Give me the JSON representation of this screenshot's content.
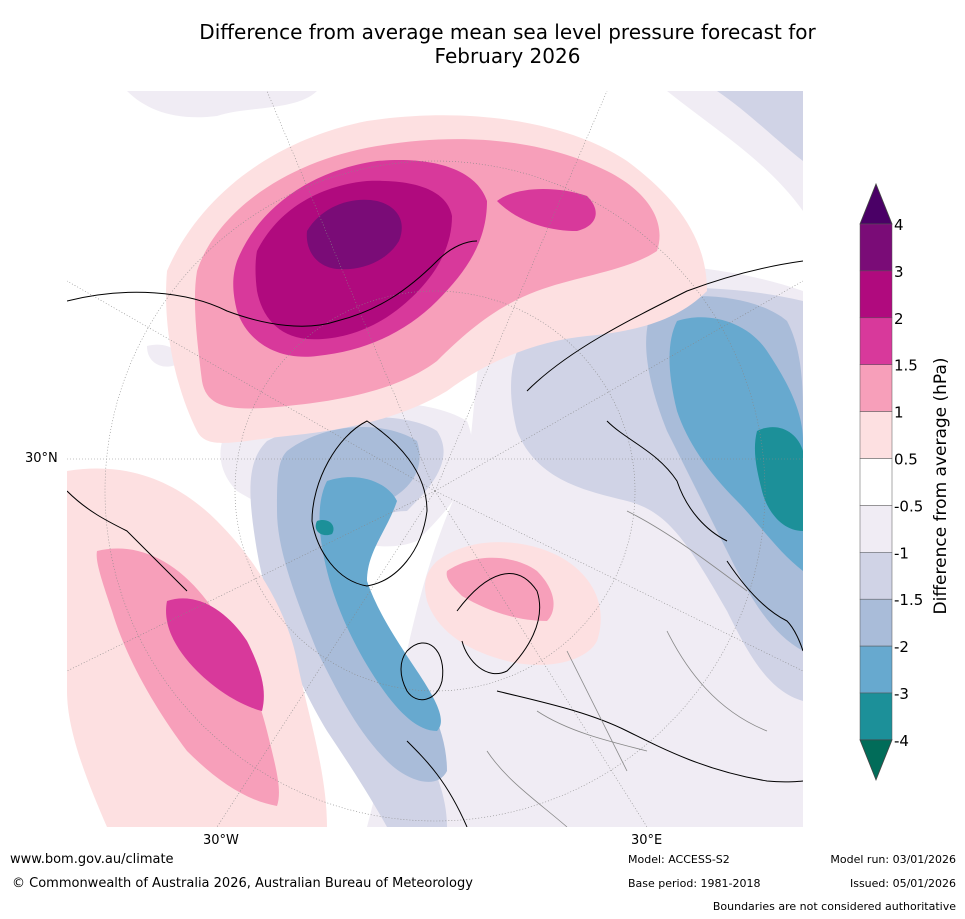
{
  "title_line1": "Difference from average mean sea level pressure forecast for",
  "title_line2": "February 2026",
  "map": {
    "projection": "north-polar stereographic",
    "lat_label": "30°N",
    "lon_labels": {
      "west": "30°W",
      "east": "30°E"
    }
  },
  "colorbar": {
    "label": "Difference from average (hPa)",
    "ticks": [
      "4",
      "3",
      "2",
      "1.5",
      "1",
      "0.5",
      "-0.5",
      "-1",
      "-1.5",
      "-2",
      "-3",
      "-4"
    ],
    "colors": {
      "above_4": "#4a0066",
      "3_to_4": "#7a0c77",
      "2_to_3": "#b00a7e",
      "1.5_to_2": "#d8399b",
      "1_to_1.5": "#f79fba",
      "0.5_to_1": "#fde0e1",
      "neutral": "#ffffff",
      "-1_to_-0.5": "#f0ecf4",
      "-1.5_to_-1": "#d0d3e6",
      "-2_to_-1.5": "#a9bcd9",
      "-3_to_-2": "#67a9cf",
      "-4_to_-3": "#1c9099",
      "below_-4": "#016c59"
    }
  },
  "footer": {
    "website": "www.bom.gov.au/climate",
    "copyright": "© Commonwealth of Australia 2026, Australian Bureau of Meteorology",
    "model": "Model: ACCESS-S2",
    "base_period": "Base period: 1981-2018",
    "model_run": "Model run: 03/01/2026",
    "issued": "Issued: 05/01/2026",
    "disclaimer": "Boundaries are not considered authoritative"
  }
}
